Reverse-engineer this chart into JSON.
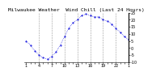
{
  "title": "Milwaukee Weather  Wind Chill (Last 24 Hours)",
  "x_values": [
    0,
    1,
    2,
    3,
    4,
    5,
    6,
    7,
    8,
    9,
    10,
    11,
    12,
    13,
    14,
    15,
    16,
    17,
    18,
    19,
    20,
    21,
    22,
    23,
    24
  ],
  "y_values": [
    5,
    2,
    -2,
    -5,
    -7,
    -8,
    -6,
    -3,
    2,
    8,
    14,
    18,
    20,
    23,
    24,
    23,
    22,
    22,
    20,
    19,
    17,
    14,
    11,
    8,
    6
  ],
  "y_min": -10,
  "y_max": 25,
  "line_color": "#0000dd",
  "bg_color": "#ffffff",
  "grid_color": "#999999",
  "title_color": "#000000",
  "tick_color": "#000000",
  "title_fontsize": 4.5,
  "tick_fontsize": 3.5,
  "ytick_values": [
    25,
    20,
    15,
    10,
    5,
    0,
    -5,
    -10
  ],
  "ytick_labels": [
    "25",
    "20",
    "15",
    "10",
    "5",
    "0",
    "-5",
    "-10"
  ],
  "x_tick_positions": [
    0,
    1,
    2,
    3,
    4,
    5,
    6,
    7,
    8,
    9,
    10,
    11,
    12,
    13,
    14,
    15,
    16,
    17,
    18,
    19,
    20,
    21,
    22,
    23,
    24
  ],
  "x_tick_labels": [
    "1",
    "",
    "",
    "4",
    "",
    "",
    "7",
    "",
    "",
    "10",
    "",
    "",
    "13",
    "",
    "",
    "16",
    "",
    "",
    "19",
    "",
    "",
    "22",
    "",
    "",
    "1"
  ],
  "vgrid_positions": [
    3,
    6,
    9,
    12,
    15,
    18,
    21
  ]
}
